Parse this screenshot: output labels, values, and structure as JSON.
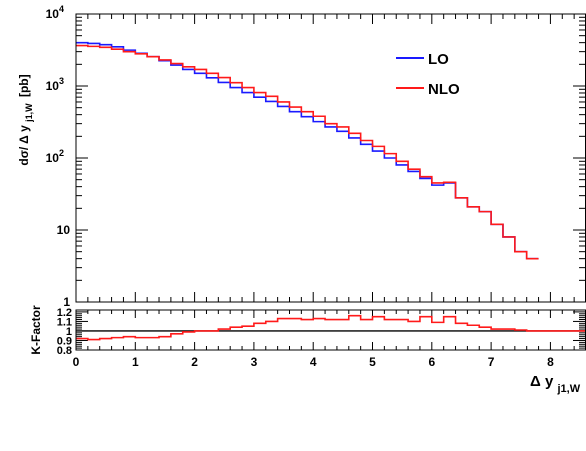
{
  "colors": {
    "lo": "#1a1aff",
    "nlo": "#ff1a1a",
    "axis": "#000000",
    "ref_line": "#000000"
  },
  "chart_data": [
    {
      "type": "line",
      "step": true,
      "title": "",
      "xlabel": "",
      "ylabel": "dσ/ Δ y j1,W [pb]",
      "ylabel_main": "dσ/ Δ y",
      "ylabel_sub": "j1,W",
      "ylabel_unit": "[pb]",
      "yscale": "log",
      "xlim": [
        0,
        8.6
      ],
      "ylim": [
        1,
        10000
      ],
      "y_ticks": [
        {
          "value": 1,
          "label": "1"
        },
        {
          "value": 10,
          "label": "10"
        },
        {
          "value": 100,
          "label": "10",
          "exp": "2"
        },
        {
          "value": 1000,
          "label": "10",
          "exp": "3"
        },
        {
          "value": 10000,
          "label": "10",
          "exp": "4"
        }
      ],
      "legend": {
        "position": "top-right",
        "entries": [
          "LO",
          "NLO"
        ]
      },
      "bin_width": 0.2,
      "x_edges_start": 0,
      "series": [
        {
          "name": "LO",
          "color": "#1a1aff",
          "values": [
            4000,
            3900,
            3750,
            3500,
            3150,
            2850,
            2550,
            2250,
            1950,
            1700,
            1500,
            1300,
            1120,
            950,
            810,
            700,
            610,
            520,
            440,
            375,
            320,
            270,
            235,
            190,
            155,
            125,
            100,
            80,
            65,
            52,
            42,
            45,
            28,
            21,
            18,
            12,
            8,
            5,
            4
          ]
        },
        {
          "name": "NLO",
          "color": "#ff1a1a",
          "values": [
            3650,
            3550,
            3450,
            3250,
            3000,
            2800,
            2550,
            2300,
            2050,
            1850,
            1700,
            1500,
            1310,
            1110,
            950,
            810,
            720,
            600,
            510,
            440,
            380,
            300,
            270,
            220,
            175,
            145,
            115,
            90,
            70,
            55,
            45,
            46,
            28,
            21,
            18,
            12,
            8,
            5,
            4
          ]
        }
      ]
    },
    {
      "type": "line",
      "step": true,
      "title": "",
      "xlabel": "Δ y j1,W",
      "xlabel_main": "Δ y",
      "xlabel_sub": "j1,W",
      "ylabel": "K-Factor",
      "xlim": [
        0,
        8.6
      ],
      "ylim": [
        0.8,
        1.22
      ],
      "reference_line": 1.0,
      "x_ticks": [
        {
          "value": 0,
          "label": "0"
        },
        {
          "value": 1,
          "label": "1"
        },
        {
          "value": 2,
          "label": "2"
        },
        {
          "value": 3,
          "label": "3"
        },
        {
          "value": 4,
          "label": "4"
        },
        {
          "value": 5,
          "label": "5"
        },
        {
          "value": 6,
          "label": "6"
        },
        {
          "value": 7,
          "label": "7"
        },
        {
          "value": 8,
          "label": "8"
        }
      ],
      "y_ticks": [
        {
          "value": 0.8,
          "label": "0.8"
        },
        {
          "value": 0.9,
          "label": "0.9"
        },
        {
          "value": 1.0,
          "label": "1"
        },
        {
          "value": 1.1,
          "label": "1.1"
        },
        {
          "value": 1.2,
          "label": "1.2"
        }
      ],
      "bin_width": 0.2,
      "x_edges_start": 0,
      "series": [
        {
          "name": "K-Factor",
          "color": "#ff1a1a",
          "values": [
            0.92,
            0.91,
            0.92,
            0.93,
            0.94,
            0.93,
            0.93,
            0.94,
            0.97,
            0.99,
            1.0,
            1.0,
            1.02,
            1.04,
            1.05,
            1.08,
            1.1,
            1.13,
            1.13,
            1.12,
            1.13,
            1.12,
            1.12,
            1.16,
            1.12,
            1.15,
            1.12,
            1.12,
            1.1,
            1.15,
            1.09,
            1.15,
            1.08,
            1.06,
            1.04,
            1.02,
            1.02,
            1.01,
            1.0,
            1.0,
            1.0,
            1.0,
            1.0
          ]
        }
      ]
    }
  ]
}
